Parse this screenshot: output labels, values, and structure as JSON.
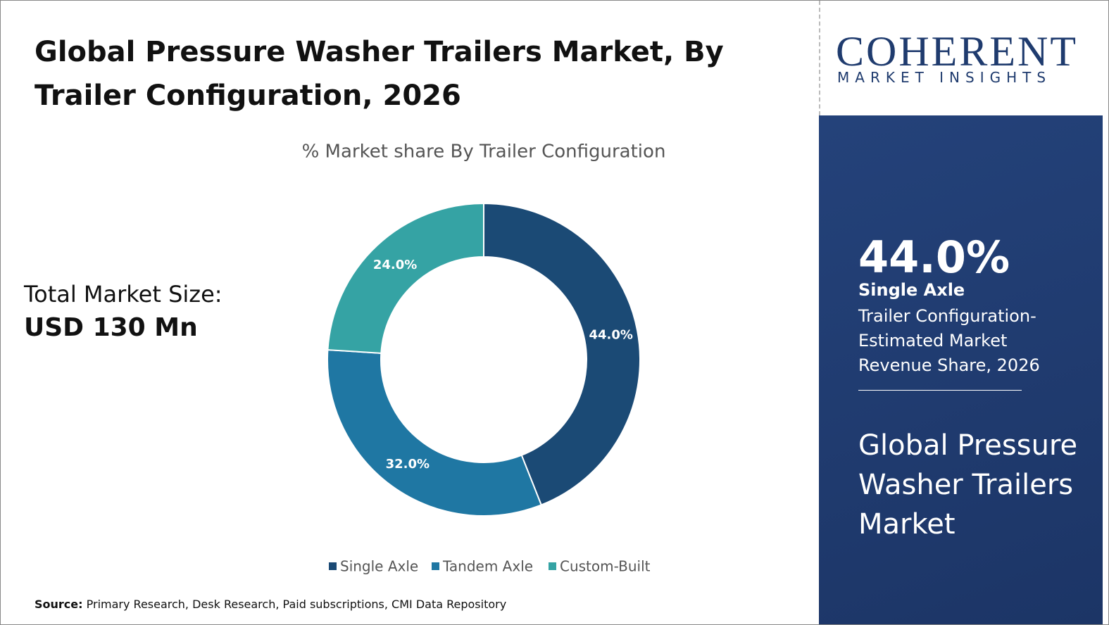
{
  "title": "Global Pressure Washer Trailers Market, By Trailer Configuration, 2026",
  "market_size": {
    "label": "Total Market Size:",
    "value": "USD 130 Mn"
  },
  "chart_data": {
    "type": "pie",
    "title": "% Market share By Trailer Configuration",
    "categories": [
      "Single Axle",
      "Tandem Axle",
      "Custom-Built"
    ],
    "values": [
      44,
      32,
      24
    ],
    "value_labels": [
      "44.0%",
      "32.0%",
      "24.0%"
    ],
    "colors": [
      "#1b4a75",
      "#1f77a3",
      "#35a3a4"
    ],
    "legend": "bottom"
  },
  "logo": {
    "name": "COHERENT",
    "tagline": "MARKET INSIGHTS"
  },
  "highlight": {
    "value": "44.0%",
    "segment": "Single Axle",
    "description": "Trailer Configuration-Estimated Market Revenue Share, 2026",
    "market": "Global Pressure Washer Trailers Market"
  },
  "source": {
    "label": "Source:",
    "text": "Primary Research, Desk Research, Paid subscriptions, CMI Data Repository"
  }
}
